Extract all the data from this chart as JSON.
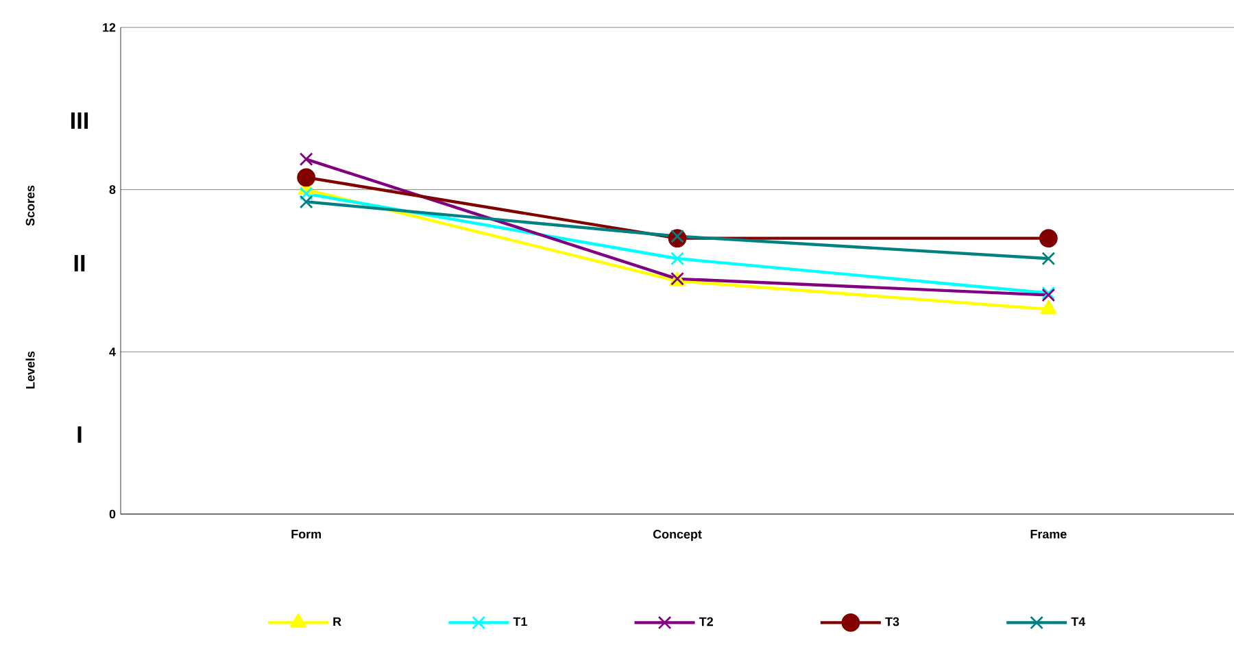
{
  "chart_data": {
    "type": "line",
    "annotations": [
      "III",
      "II",
      "I",
      "Levels",
      "Scores"
    ],
    "categories": [
      "Form",
      "Concept",
      "Frame"
    ],
    "series": [
      {
        "name": "R",
        "color": "#ffff00",
        "marker": "triangle",
        "values": [
          8.0,
          5.75,
          5.05
        ]
      },
      {
        "name": "T1",
        "color": "#00ffff",
        "marker": "cross",
        "values": [
          7.9,
          6.3,
          5.45
        ]
      },
      {
        "name": "T2",
        "color": "#800080",
        "marker": "cross",
        "values": [
          8.75,
          5.8,
          5.4
        ]
      },
      {
        "name": "T3",
        "color": "#800000",
        "marker": "circle",
        "values": [
          8.3,
          6.8,
          6.8
        ]
      },
      {
        "name": "T4",
        "color": "#008080",
        "marker": "cross",
        "values": [
          7.7,
          6.85,
          6.3
        ]
      }
    ],
    "ylim": [
      0,
      12
    ],
    "yticks": [
      0,
      4,
      8,
      12
    ],
    "grid": "y",
    "legend": "bottom",
    "line_style": "solid"
  }
}
